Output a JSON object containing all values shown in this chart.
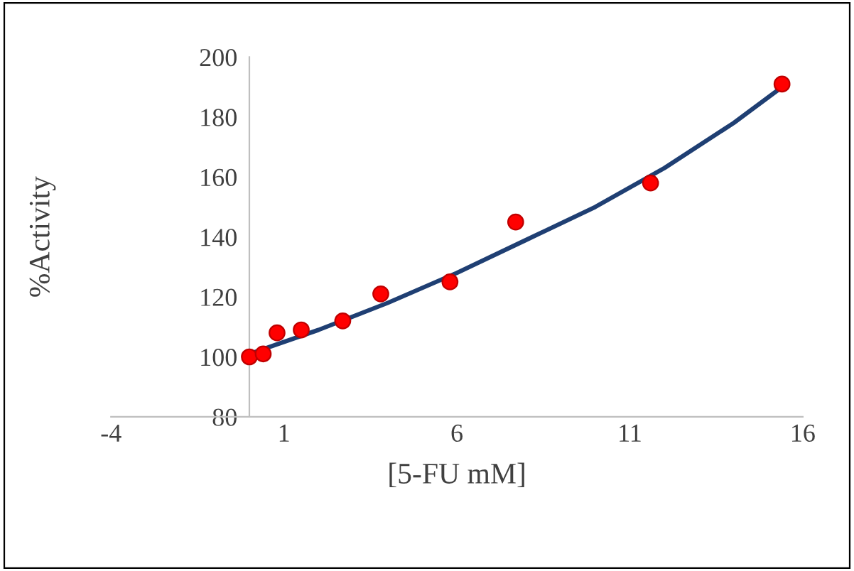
{
  "chart_data": {
    "type": "scatter",
    "xlabel": "[5-FU mM]",
    "ylabel": "%Activity",
    "xlim": [
      -4,
      16
    ],
    "xticks": [
      -4,
      1,
      6,
      11,
      16
    ],
    "ylim": [
      80,
      200
    ],
    "yticks": [
      80,
      100,
      120,
      140,
      160,
      180,
      200
    ],
    "grid": false,
    "legend": false,
    "series": [
      {
        "color": "#ff0000",
        "marker": "circle",
        "x": [
          0,
          0.4,
          0.8,
          1.5,
          2.7,
          3.8,
          5.8,
          7.7,
          11.6,
          15.4
        ],
        "values": [
          100,
          101,
          108,
          109,
          112,
          121,
          125,
          145,
          158,
          191
        ]
      },
      {
        "type": "line",
        "color": "#1f3f73",
        "marker": "none",
        "line_style": "solid",
        "x": [
          0,
          2,
          4,
          6,
          8,
          10,
          12,
          14,
          15.4
        ],
        "values": [
          101,
          109,
          118,
          128,
          139,
          150,
          163,
          178,
          190
        ]
      }
    ]
  }
}
